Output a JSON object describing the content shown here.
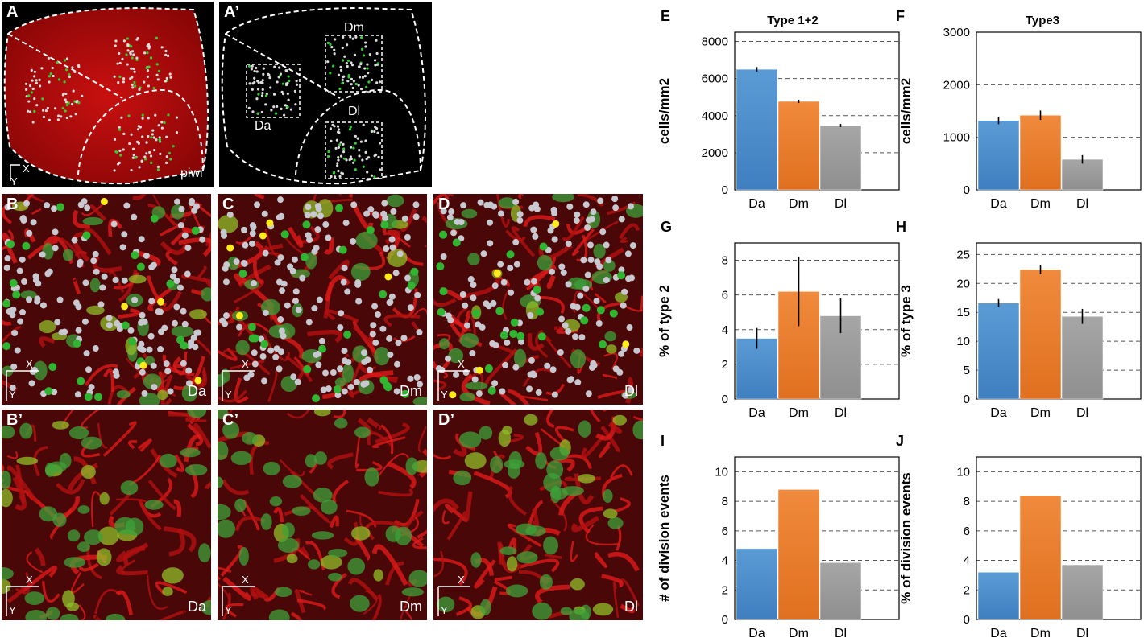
{
  "panels": {
    "A": {
      "label": "A",
      "marker": "piwi"
    },
    "A2": {
      "label": "A’",
      "regions": [
        "Dm",
        "Da",
        "Dl"
      ]
    },
    "B": {
      "label": "B",
      "region": "Da"
    },
    "C": {
      "label": "C",
      "region": "Dm"
    },
    "D": {
      "label": "D",
      "region": "Dl"
    },
    "B2": {
      "label": "B’",
      "region": "Da"
    },
    "C2": {
      "label": "C’",
      "region": "Dm"
    },
    "D2": {
      "label": "D’",
      "region": "Dl"
    },
    "axis_x": "X",
    "axis_y": "Y"
  },
  "colors": {
    "blue": "#5b9bd5",
    "orange": "#f08a3c",
    "gray": "#a6a6a6"
  },
  "chart_data": [
    {
      "id": "E",
      "panel_letter": "E",
      "type": "bar",
      "title": "Type 1+2",
      "categories": [
        "Da",
        "Dm",
        "Dl"
      ],
      "values": [
        6500,
        4770,
        3470
      ],
      "errors": [
        120,
        90,
        80
      ],
      "ylabel": "cells/mm2",
      "ylim": [
        0,
        8500
      ],
      "yticks": [
        0,
        2000,
        4000,
        6000,
        8000
      ],
      "grid": true
    },
    {
      "id": "F",
      "panel_letter": "F",
      "type": "bar",
      "title": "Type3",
      "categories": [
        "Da",
        "Dm",
        "Dl"
      ],
      "values": [
        1320,
        1420,
        580
      ],
      "errors": [
        70,
        90,
        80
      ],
      "ylabel": "cells/mm2",
      "ylim": [
        0,
        3000
      ],
      "yticks": [
        0,
        1000,
        2000,
        3000
      ],
      "grid": true
    },
    {
      "id": "G",
      "panel_letter": "G",
      "type": "bar",
      "title": "",
      "categories": [
        "Da",
        "Dm",
        "Dl"
      ],
      "values": [
        3.5,
        6.2,
        4.8
      ],
      "errors": [
        0.6,
        2.0,
        1.0
      ],
      "ylabel": "% of type 2",
      "ylim": [
        0,
        9
      ],
      "yticks": [
        0,
        2,
        4,
        6,
        8
      ],
      "grid": true
    },
    {
      "id": "H",
      "panel_letter": "H",
      "type": "bar",
      "title": "",
      "categories": [
        "Da",
        "Dm",
        "Dl"
      ],
      "values": [
        16.6,
        22.4,
        14.3
      ],
      "errors": [
        0.7,
        0.8,
        1.3
      ],
      "ylabel": "% of type 3",
      "ylim": [
        0,
        27
      ],
      "yticks": [
        0,
        5,
        10,
        15,
        20,
        25
      ],
      "grid": true
    },
    {
      "id": "I",
      "panel_letter": "I",
      "type": "bar",
      "title": "",
      "categories": [
        "Da",
        "Dm",
        "Dl"
      ],
      "values": [
        4.8,
        8.8,
        3.85
      ],
      "errors": null,
      "ylabel": "# of division events",
      "ylim": [
        0,
        11
      ],
      "yticks": [
        0,
        2,
        4,
        6,
        8,
        10
      ],
      "grid": true
    },
    {
      "id": "J",
      "panel_letter": "J",
      "type": "bar",
      "title": "",
      "categories": [
        "Da",
        "Dm",
        "Dl"
      ],
      "values": [
        3.2,
        8.4,
        3.7
      ],
      "errors": null,
      "ylabel": "% of division events",
      "ylim": [
        0,
        11
      ],
      "yticks": [
        0,
        2,
        4,
        6,
        8,
        10
      ],
      "grid": true
    }
  ]
}
